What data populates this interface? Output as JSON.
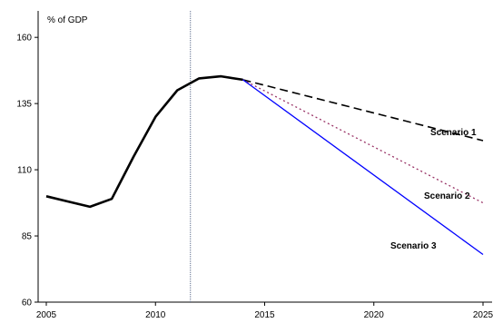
{
  "chart_data": {
    "type": "line",
    "ylabel": "% of GDP",
    "xlim": [
      2005,
      2025
    ],
    "ylim": [
      60,
      170
    ],
    "x_ticks": [
      2005,
      2010,
      2015,
      2020,
      2025
    ],
    "y_ticks": [
      60,
      85,
      110,
      135,
      160
    ],
    "x_tick_labels": [
      "2005",
      "2010",
      "2015",
      "2020",
      "2025"
    ],
    "y_tick_labels": [
      "60",
      "85",
      "110",
      "135",
      "160"
    ],
    "reference_line_x": 2011.6,
    "grid": false,
    "series": [
      {
        "name": "",
        "style": "solid",
        "color": "#000000",
        "x": [
          2005,
          2006,
          2007,
          2008,
          2009,
          2010,
          2011,
          2012,
          2013,
          2014
        ],
        "y": [
          100,
          98,
          96,
          99,
          115,
          130,
          140,
          144.5,
          145.3,
          144
        ]
      },
      {
        "name": "Scenario 1",
        "style": "dashed",
        "color": "#000000",
        "x": [
          2014,
          2025
        ],
        "y": [
          144,
          121
        ]
      },
      {
        "name": "Scenario 2",
        "style": "dotted",
        "color": "#993366",
        "x": [
          2014,
          2025
        ],
        "y": [
          144,
          97.5
        ]
      },
      {
        "name": "Scenario 3",
        "style": "solid",
        "color": "#0000ff",
        "x": [
          2014,
          2025
        ],
        "y": [
          144,
          78
        ]
      }
    ]
  },
  "labels": {
    "unit": "% of GDP",
    "scenario1": "Scenario 1",
    "scenario2": "Scenario 2",
    "scenario3": "Scenario 3"
  }
}
